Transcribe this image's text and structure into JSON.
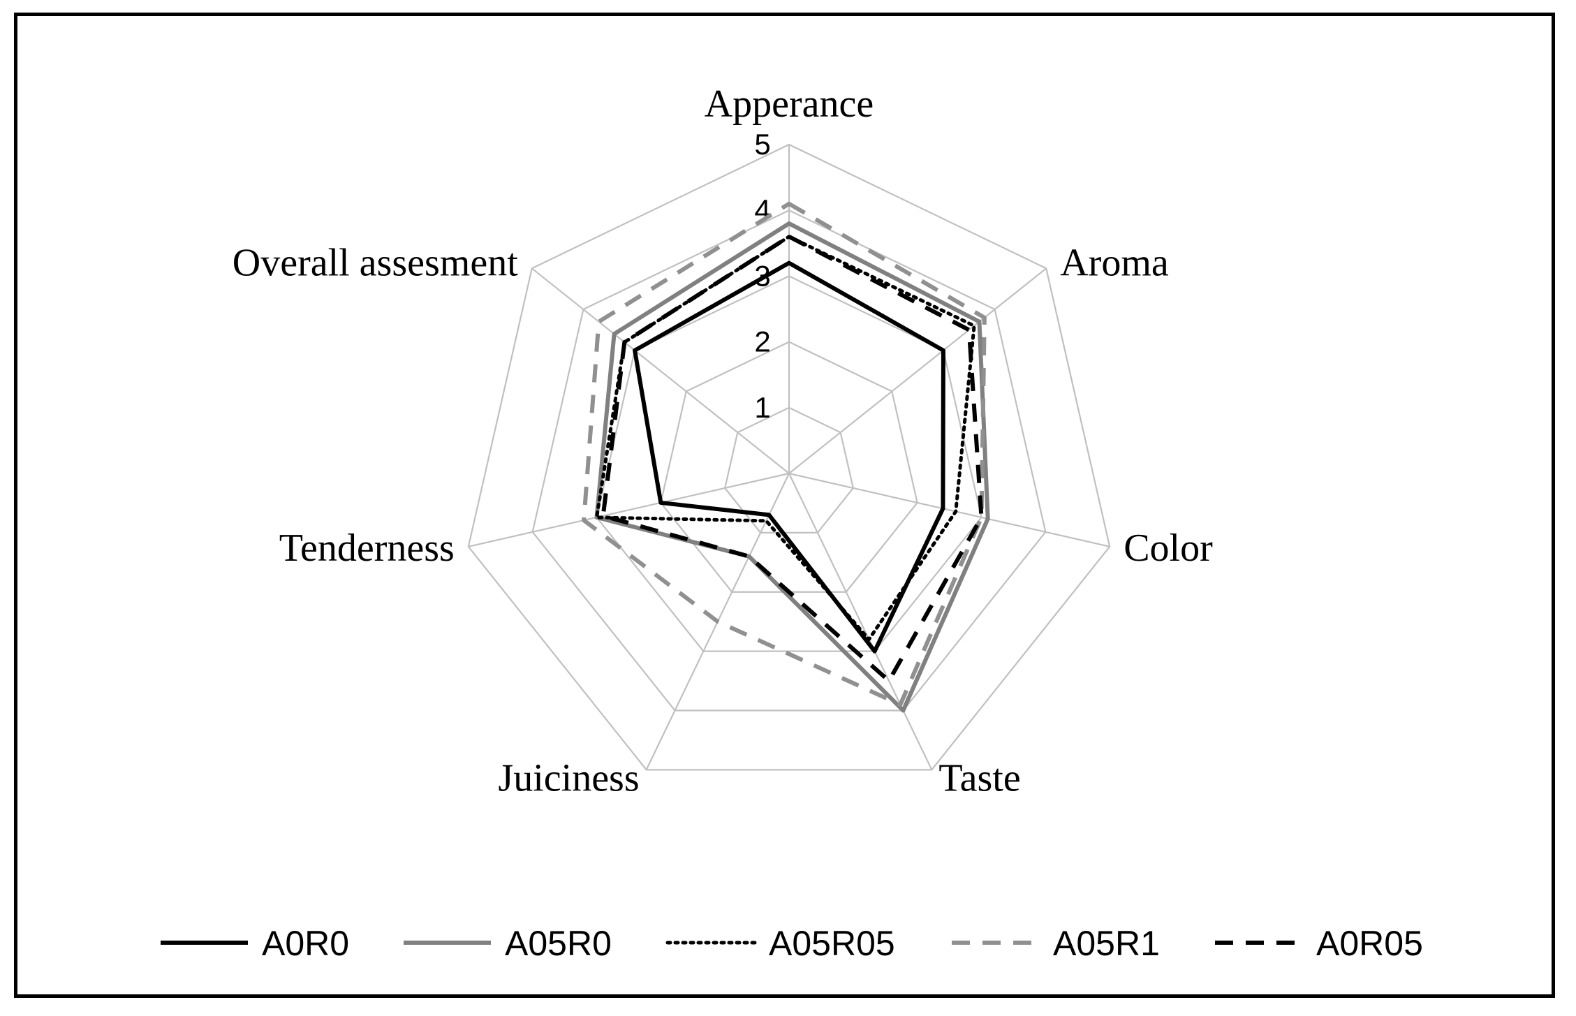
{
  "chart_data": {
    "type": "radar",
    "categories": [
      "Apperance",
      "Aroma",
      "Color",
      "Taste",
      "Juiciness",
      "Tenderness",
      "Overall assesment"
    ],
    "rlim": [
      0,
      5
    ],
    "ticks": [
      "1",
      "2",
      "3",
      "4",
      "5"
    ],
    "grid": true,
    "legend_position": "bottom",
    "series": [
      {
        "name": "A0R0",
        "values": [
          3.2,
          3.0,
          2.4,
          3.0,
          0.7,
          2.0,
          3.0
        ],
        "color": "#000000",
        "style": "solid"
      },
      {
        "name": "A05R0",
        "values": [
          3.8,
          3.7,
          3.1,
          4.0,
          1.4,
          3.0,
          3.4
        ],
        "color": "#808080",
        "style": "solid"
      },
      {
        "name": "A05R05",
        "values": [
          3.6,
          3.6,
          2.6,
          2.8,
          0.8,
          3.0,
          3.2
        ],
        "color": "#000000",
        "style": "dotted"
      },
      {
        "name": "A05R1",
        "values": [
          4.1,
          3.8,
          3.0,
          3.9,
          2.5,
          3.2,
          3.7
        ],
        "color": "#909090",
        "style": "dashed"
      },
      {
        "name": "A0R05",
        "values": [
          3.6,
          3.5,
          3.0,
          3.5,
          1.4,
          2.9,
          3.2
        ],
        "color": "#000000",
        "style": "dashed"
      }
    ]
  }
}
